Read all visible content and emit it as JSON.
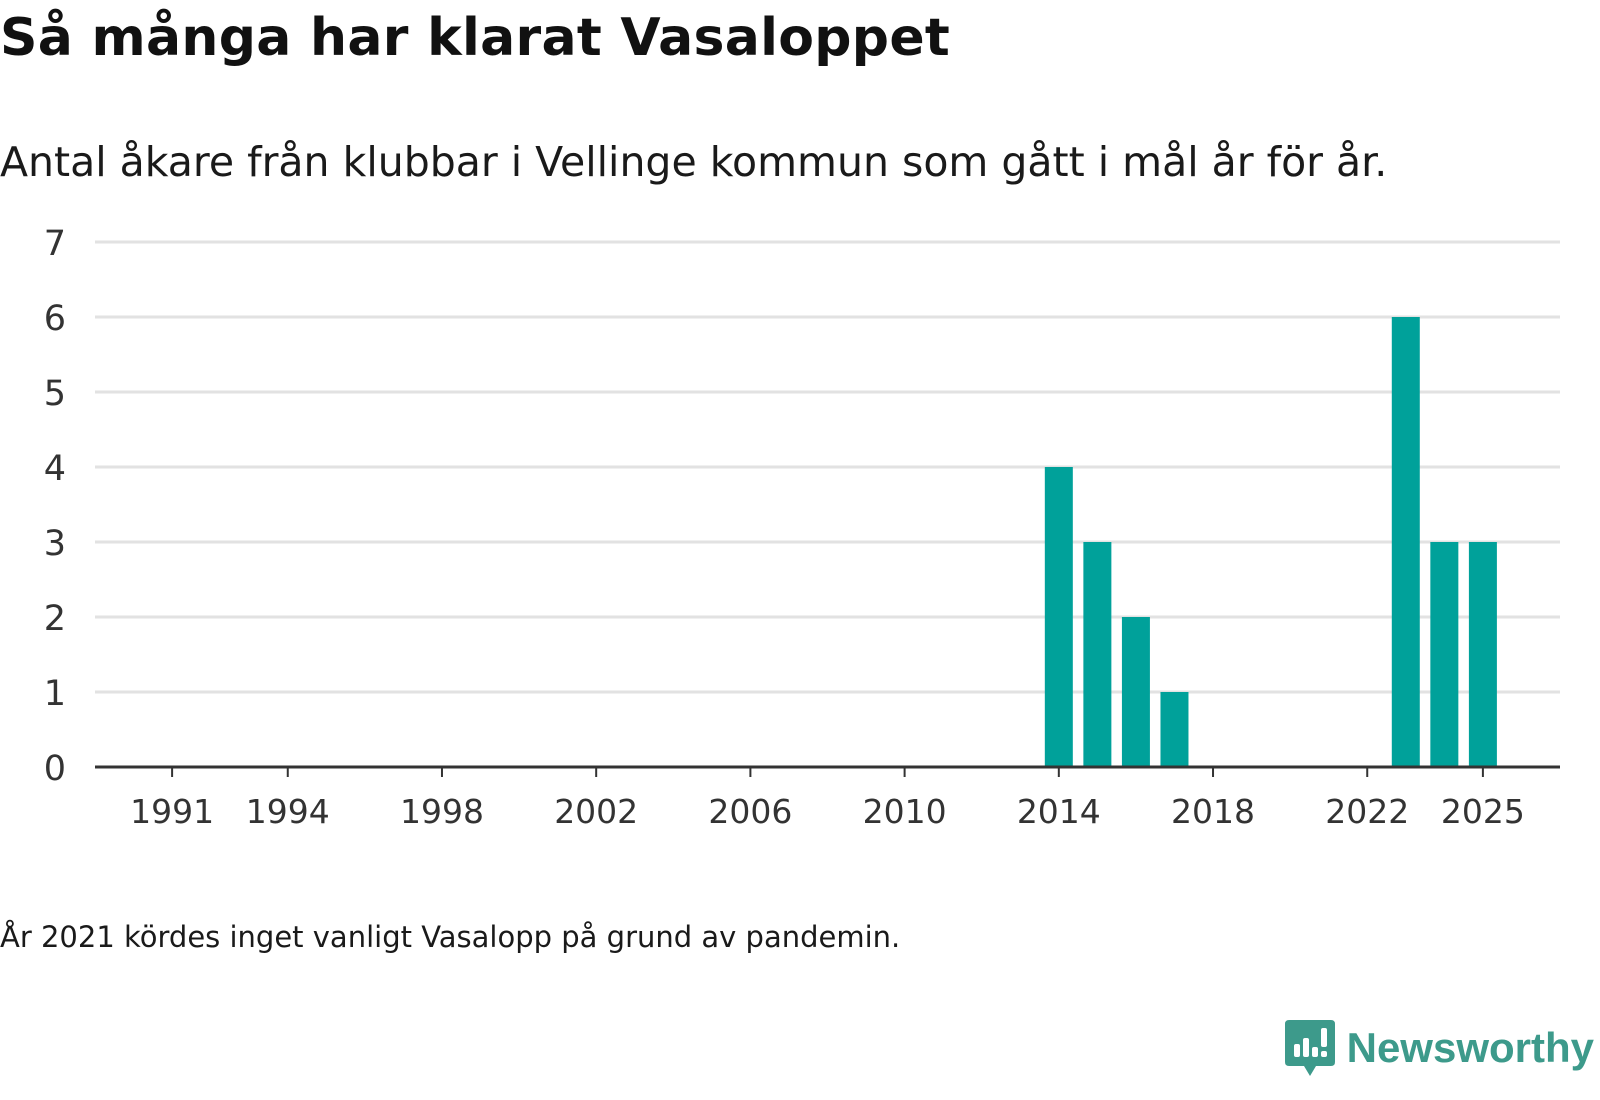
{
  "title": "Så många har klarat Vasaloppet",
  "subtitle": "Antal åkare från klubbar i Vellinge kommun som gått i mål år för år.",
  "note": "År 2021 kördes inget vanligt Vasalopp på grund av pandemin.",
  "brand": {
    "name": "Newsworthy",
    "icon": "newsworthy-logo-icon"
  },
  "colors": {
    "bar": "#00a19a",
    "grid": "#e2e2e2",
    "axis": "#333333",
    "brand": "#3d9a8b",
    "text": "#333333"
  },
  "chart_data": {
    "type": "bar",
    "title": "Så många har klarat Vasaloppet",
    "xlabel": "",
    "ylabel": "",
    "x_range": [
      1989,
      2027
    ],
    "ylim": [
      0,
      7
    ],
    "y_ticks": [
      "0",
      "1",
      "2",
      "3",
      "4",
      "5",
      "6",
      "7"
    ],
    "x_ticks": [
      "1991",
      "1994",
      "1998",
      "2002",
      "2006",
      "2010",
      "2014",
      "2018",
      "2022",
      "2025"
    ],
    "grid": true,
    "series": [
      {
        "name": "Antal åkare",
        "points": [
          {
            "year": 2014,
            "value": 4
          },
          {
            "year": 2015,
            "value": 3
          },
          {
            "year": 2016,
            "value": 2
          },
          {
            "year": 2017,
            "value": 1
          },
          {
            "year": 2023,
            "value": 6
          },
          {
            "year": 2024,
            "value": 3
          },
          {
            "year": 2025,
            "value": 3
          }
        ]
      }
    ]
  }
}
